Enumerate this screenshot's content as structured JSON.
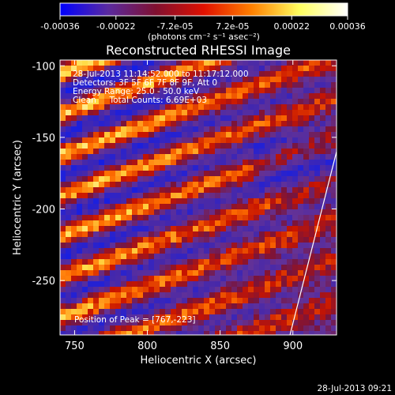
{
  "chart_data": {
    "type": "heatmap",
    "title": "Reconstructed RHESSI Image",
    "xlabel": "Heliocentric X (arcsec)",
    "ylabel": "Heliocentric Y (arcsec)",
    "xlim": [
      740,
      930
    ],
    "ylim": [
      -288,
      -96
    ],
    "xticks": [
      750,
      800,
      850,
      900
    ],
    "yticks": [
      -100,
      -150,
      -200,
      -250
    ],
    "colorbar": {
      "ticks": [
        "-0.00036",
        "-0.00022",
        "-7.2e-05",
        "7.2e-05",
        "0.00022",
        "0.00036"
      ],
      "tick_values": [
        -0.00036,
        -0.00022,
        -7.2e-05,
        7.2e-05,
        0.00022,
        0.00036
      ],
      "range": [
        -0.00036,
        0.00036
      ],
      "units": "(photons cm⁻² s⁻¹ asec⁻²)",
      "colors": [
        "#0000ff",
        "#5a2aa0",
        "#801030",
        "#e01000",
        "#ff8000",
        "#ffff60",
        "#ffffff"
      ]
    },
    "annotations": [
      "28-Jul-2013 11:14:52.000 to 11:17:12.000",
      "Detectors: 3F 5F 6F 7F 8F 9F, Att 0",
      "Energy Range: 25.0 - 50.0 keV",
      "Clean     Total Counts: 6.69E+03"
    ],
    "peak_label": "Position of Peak = [767,-223]",
    "peak": [
      767,
      -223
    ],
    "limb_line": [
      [
        898,
        -288
      ],
      [
        930,
        -160
      ]
    ],
    "grid": false
  },
  "footer": {
    "timestamp": "28-Jul-2013 09:21"
  }
}
